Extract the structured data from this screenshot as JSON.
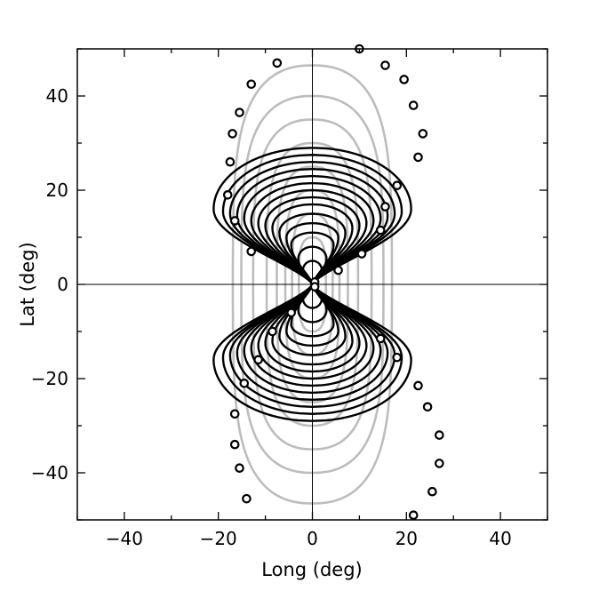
{
  "chart_data": {
    "type": "line",
    "xlabel": "Long (deg)",
    "ylabel": "Lat (deg)",
    "xlim": [
      -50,
      50
    ],
    "ylim": [
      -50,
      50
    ],
    "x_ticks": [
      -40,
      -20,
      0,
      20,
      40
    ],
    "y_ticks": [
      -40,
      -20,
      0,
      20,
      40
    ],
    "x_tick_labels": [
      "−40",
      "−20",
      "0",
      "20",
      "40"
    ],
    "y_tick_labels": [
      "−40",
      "−20",
      "0",
      "20",
      "40"
    ],
    "grid": false,
    "zero_lines": true,
    "colors": {
      "black_contours": "#000000",
      "gray_contours": "#bdbdbd",
      "points": "#000000"
    },
    "gray_contours": [
      {
        "width": 23.5,
        "height": 46.5
      },
      {
        "width": 21.0,
        "height": 40.0
      },
      {
        "width": 17.5,
        "height": 35.0
      },
      {
        "width": 13.5,
        "height": 30.0
      },
      {
        "width": 10.5,
        "height": 25.0
      },
      {
        "width": 8.0,
        "height": 20.0
      },
      {
        "width": 6.0,
        "height": 15.0
      },
      {
        "width": 4.0,
        "height": 10.0
      }
    ],
    "black_contours": [
      {
        "width": 21.0,
        "height": 29.0,
        "peak_lat": 16.0
      },
      {
        "width": 19.0,
        "height": 27.5,
        "peak_lat": 15.5
      },
      {
        "width": 17.5,
        "height": 26.0,
        "peak_lat": 15.0
      },
      {
        "width": 16.0,
        "height": 24.5,
        "peak_lat": 14.5
      },
      {
        "width": 14.5,
        "height": 23.0,
        "peak_lat": 14.0
      },
      {
        "width": 13.0,
        "height": 21.5,
        "peak_lat": 13.5
      },
      {
        "width": 11.5,
        "height": 20.0,
        "peak_lat": 13.0
      },
      {
        "width": 10.0,
        "height": 18.5,
        "peak_lat": 12.5
      },
      {
        "width": 8.5,
        "height": 17.0,
        "peak_lat": 12.0
      },
      {
        "width": 7.0,
        "height": 15.0,
        "peak_lat": 11.0
      },
      {
        "width": 5.5,
        "height": 13.0,
        "peak_lat": 10.0
      },
      {
        "width": 4.5,
        "height": 11.0,
        "peak_lat": 8.5
      },
      {
        "width": 3.0,
        "height": 8.0,
        "peak_lat": 5.5
      },
      {
        "width": 2.0,
        "height": 5.0,
        "peak_lat": 3.0
      }
    ],
    "points": [
      {
        "x": 10,
        "y": 50
      },
      {
        "x": -7.5,
        "y": 47
      },
      {
        "x": 15.5,
        "y": 46.5
      },
      {
        "x": -13,
        "y": 42.5
      },
      {
        "x": 19.5,
        "y": 43.5
      },
      {
        "x": -15.5,
        "y": 36.5
      },
      {
        "x": 21.5,
        "y": 38
      },
      {
        "x": -17,
        "y": 32
      },
      {
        "x": 23.5,
        "y": 32
      },
      {
        "x": -17.5,
        "y": 26
      },
      {
        "x": 22.5,
        "y": 27
      },
      {
        "x": -18,
        "y": 19
      },
      {
        "x": 18,
        "y": 21
      },
      {
        "x": -16.5,
        "y": 13.5
      },
      {
        "x": 15.5,
        "y": 16.5
      },
      {
        "x": 14.5,
        "y": 11.5
      },
      {
        "x": -13,
        "y": 7
      },
      {
        "x": 10.5,
        "y": 6.5
      },
      {
        "x": 5.5,
        "y": 3
      },
      {
        "x": 0.5,
        "y": 0.5
      },
      {
        "x": 0.5,
        "y": -0.5
      },
      {
        "x": -4.5,
        "y": -6
      },
      {
        "x": -8.5,
        "y": -10
      },
      {
        "x": 14.5,
        "y": -11.5
      },
      {
        "x": -11.5,
        "y": -16
      },
      {
        "x": 18,
        "y": -15.5
      },
      {
        "x": -14.5,
        "y": -21
      },
      {
        "x": 22.5,
        "y": -21.5
      },
      {
        "x": 24.5,
        "y": -26
      },
      {
        "x": -16.5,
        "y": -27.5
      },
      {
        "x": 27,
        "y": -32
      },
      {
        "x": -16.5,
        "y": -34
      },
      {
        "x": 27,
        "y": -38
      },
      {
        "x": -15.5,
        "y": -39
      },
      {
        "x": 25.5,
        "y": -44
      },
      {
        "x": -14,
        "y": -45.5
      },
      {
        "x": 21.5,
        "y": -49
      }
    ]
  }
}
